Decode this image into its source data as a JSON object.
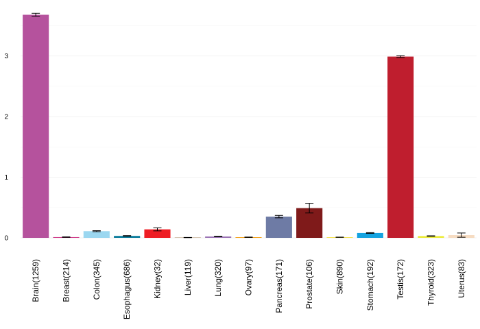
{
  "chart_data": {
    "type": "bar",
    "title": "",
    "xlabel": "",
    "ylabel": "",
    "ylim": [
      0,
      3.72
    ],
    "yticks": [
      0,
      1,
      2,
      3
    ],
    "grid": true,
    "legend": "none",
    "categories": [
      "Brain(1259)",
      "Breast(214)",
      "Colon(345)",
      "Esophagus(686)",
      "Kidney(32)",
      "Liver(119)",
      "Lung(320)",
      "Ovary(97)",
      "Pancreas(171)",
      "Prostate(106)",
      "Skin(890)",
      "Stomach(192)",
      "Testis(172)",
      "Thyroid(323)",
      "Uterus(83)"
    ],
    "values": [
      3.68,
      0.012,
      0.11,
      0.032,
      0.14,
      0.005,
      0.022,
      0.01,
      0.35,
      0.49,
      0.01,
      0.08,
      2.99,
      0.03,
      0.045
    ],
    "errors": [
      0.025,
      0.004,
      0.008,
      0.005,
      0.025,
      0.002,
      0.004,
      0.003,
      0.02,
      0.08,
      0.002,
      0.006,
      0.015,
      0.004,
      0.035
    ],
    "colors": [
      "#b5529d",
      "#d13f8c",
      "#9bd7f0",
      "#0f7e9e",
      "#ee1d24",
      "#d6c7b5",
      "#9b73b5",
      "#f5a623",
      "#6e7ba5",
      "#7f1a1a",
      "#f5e35a",
      "#15a3e0",
      "#bf1e2e",
      "#ecec3e",
      "#f6dcc2"
    ]
  }
}
